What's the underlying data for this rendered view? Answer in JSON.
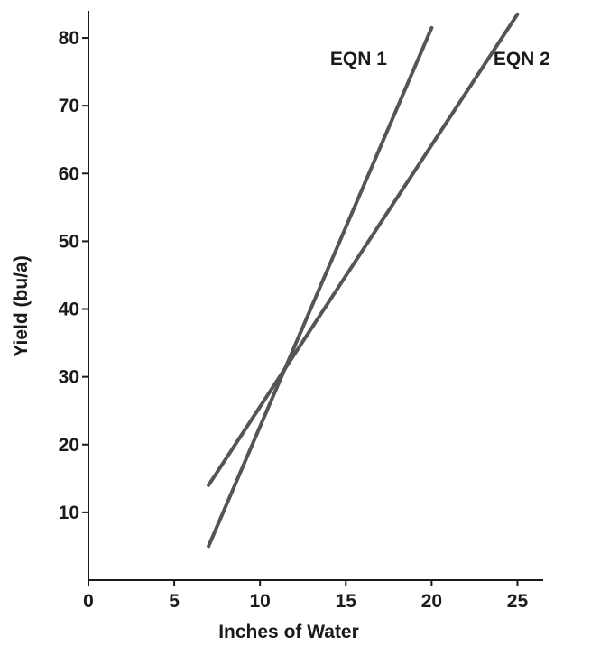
{
  "chart_data": {
    "type": "line",
    "title": "",
    "xlabel": "Inches of Water",
    "ylabel": "Yield (bu/a)",
    "xlim": [
      0,
      26.5
    ],
    "ylim": [
      0,
      84
    ],
    "x_ticks": [
      0,
      5,
      10,
      15,
      20,
      25
    ],
    "y_ticks": [
      10,
      20,
      30,
      40,
      50,
      60,
      70,
      80
    ],
    "grid": false,
    "series": [
      {
        "name": "EQN 1",
        "x": [
          7,
          20
        ],
        "y": [
          5,
          81.5
        ],
        "color": "#555555"
      },
      {
        "name": "EQN 2",
        "x": [
          7,
          25
        ],
        "y": [
          14,
          83.5
        ],
        "color": "#555555"
      }
    ]
  }
}
